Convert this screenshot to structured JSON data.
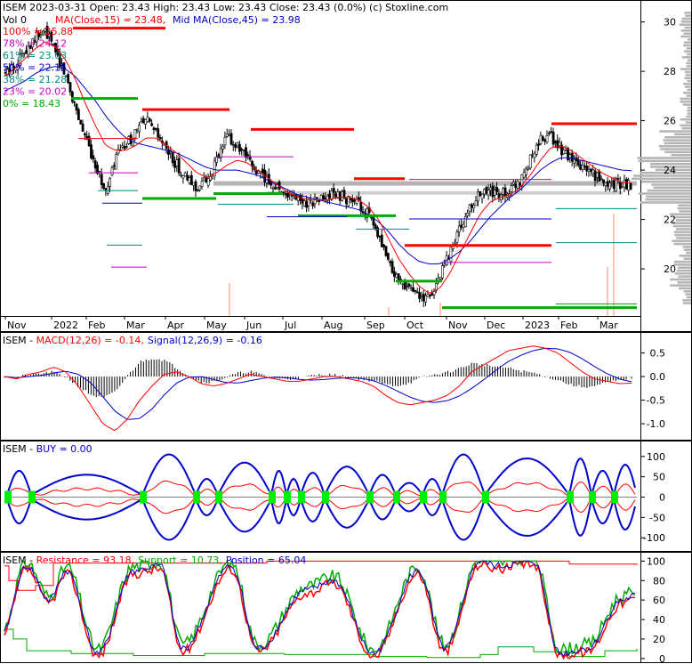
{
  "colors": {
    "red": "#ff0000",
    "blue": "#0000cc",
    "green": "#00aa00",
    "black": "#000000",
    "gray": "#b4b4b4",
    "teal": "#008888",
    "fib_purple": "#cc00cc",
    "buy_green": "#00ee00"
  },
  "header": {
    "line1": "ISEM  2023-03-31 Open: 23.43  High: 23.43  Low: 23.43  Close: 23.43 (0.0%)  (c) Stoxline.com",
    "vol": "Vol 0",
    "ma15": "MA(Close,15) = 23.48,",
    "ma45": "Mid MA(Close,45) = 23.98"
  },
  "fib_labels": [
    {
      "text": "100% = 25.88",
      "color": "#ff0000"
    },
    {
      "text": "78% = 24.12",
      "color": "#cc00cc"
    },
    {
      "text": "61% = 23.03",
      "color": "#008888"
    },
    {
      "text": "50% = 22.15",
      "color": "#0000cc"
    },
    {
      "text": "38% = 21.28",
      "color": "#008888"
    },
    {
      "text": "23% = 20.02",
      "color": "#cc00cc"
    },
    {
      "text": "0% = 18.43",
      "color": "#00aa00"
    }
  ],
  "panel_titles": {
    "macd": {
      "name": "ISEM - ",
      "a": "MACD(12,26) = -0.14,",
      "b": "Signal(12,26,9) = -0.16"
    },
    "buy": {
      "name": "ISEM - ",
      "a": "BUY = 0.00"
    },
    "stoch": {
      "name": "ISEM - ",
      "a": "Resistance = 93.18,",
      "b": "Support = 10.73,",
      "c": "Position = 65.04"
    }
  },
  "chart_data": [
    {
      "type": "candlestick",
      "panel": "price",
      "x_labels": [
        "Nov",
        "2022",
        "Feb",
        "Mar",
        "Apr",
        "May",
        "Jun",
        "Jul",
        "Aug",
        "Sep",
        "Oct",
        "Nov",
        "Dec",
        "2023",
        "Feb",
        "Mar"
      ],
      "y_ticks": [
        20,
        22,
        24,
        26,
        28,
        30
      ],
      "ylim": [
        18.2,
        30.6
      ],
      "close_path": [
        27.9,
        28.3,
        28.9,
        29.4,
        29.6,
        28.8,
        27.8,
        26.5,
        25.2,
        24.2,
        23.0,
        24.6,
        25.0,
        25.6,
        26.0,
        25.4,
        24.8,
        24.2,
        23.6,
        23.3,
        23.6,
        24.4,
        25.4,
        24.9,
        24.4,
        23.9,
        23.6,
        23.3,
        23.0,
        22.8,
        22.7,
        22.8,
        22.9,
        23.0,
        22.8,
        22.6,
        22.2,
        21.2,
        20.2,
        19.5,
        19.3,
        18.9,
        18.8,
        19.6,
        20.6,
        21.6,
        22.4,
        23.0,
        23.1,
        23.0,
        23.2,
        23.6,
        24.4,
        25.2,
        25.4,
        24.9,
        24.4,
        24.1,
        23.9,
        23.6,
        23.5,
        23.4,
        23.4
      ],
      "ma15_path": [
        27.8,
        28.1,
        28.5,
        28.9,
        29.2,
        29.0,
        28.5,
        27.7,
        26.7,
        25.8,
        25.0,
        24.8,
        24.8,
        25.0,
        25.3,
        25.3,
        25.0,
        24.7,
        24.3,
        23.9,
        23.7,
        23.9,
        24.2,
        24.4,
        24.3,
        24.0,
        23.7,
        23.4,
        23.1,
        22.9,
        22.8,
        22.8,
        22.8,
        22.9,
        22.9,
        22.8,
        22.5,
        22.0,
        21.2,
        20.4,
        19.8,
        19.3,
        19.0,
        19.2,
        19.8,
        20.6,
        21.4,
        22.2,
        22.7,
        22.9,
        23.0,
        23.3,
        23.8,
        24.4,
        24.9,
        25.0,
        24.8,
        24.5,
        24.2,
        23.9,
        23.7,
        23.5,
        23.48
      ],
      "ma45_path": [
        27.2,
        27.4,
        27.6,
        27.9,
        28.1,
        28.2,
        28.1,
        27.8,
        27.3,
        26.8,
        26.2,
        25.7,
        25.3,
        25.1,
        25.0,
        24.9,
        24.8,
        24.7,
        24.5,
        24.3,
        24.1,
        24.0,
        24.0,
        24.0,
        23.9,
        23.8,
        23.6,
        23.4,
        23.2,
        23.0,
        22.9,
        22.8,
        22.7,
        22.6,
        22.5,
        22.4,
        22.2,
        21.9,
        21.5,
        21.0,
        20.6,
        20.3,
        20.2,
        20.2,
        20.4,
        20.7,
        21.1,
        21.6,
        22.1,
        22.5,
        22.9,
        23.2,
        23.6,
        24.0,
        24.3,
        24.5,
        24.5,
        24.4,
        24.3,
        24.2,
        24.1,
        24.0,
        23.98
      ],
      "fib_levels": [
        25.88,
        24.12,
        23.03,
        22.15,
        21.28,
        20.02,
        18.43
      ]
    },
    {
      "type": "line",
      "panel": "macd",
      "y_ticks": [
        0.5,
        0.0,
        -0.5,
        -1.0
      ],
      "ylim": [
        -1.3,
        0.85
      ],
      "series": [
        "MACD(12,26)",
        "Signal(12,26,9)"
      ]
    },
    {
      "type": "line",
      "panel": "buy",
      "y_ticks": [
        100,
        50,
        0,
        -50,
        -100
      ],
      "ylim": [
        -128,
        128
      ],
      "series": [
        "BUY"
      ]
    },
    {
      "type": "line",
      "panel": "stochastic",
      "y_ticks": [
        100,
        80,
        60,
        40,
        20,
        0
      ],
      "ylim": [
        -2,
        104
      ],
      "series": [
        "Resistance",
        "Support",
        "Position"
      ]
    }
  ]
}
